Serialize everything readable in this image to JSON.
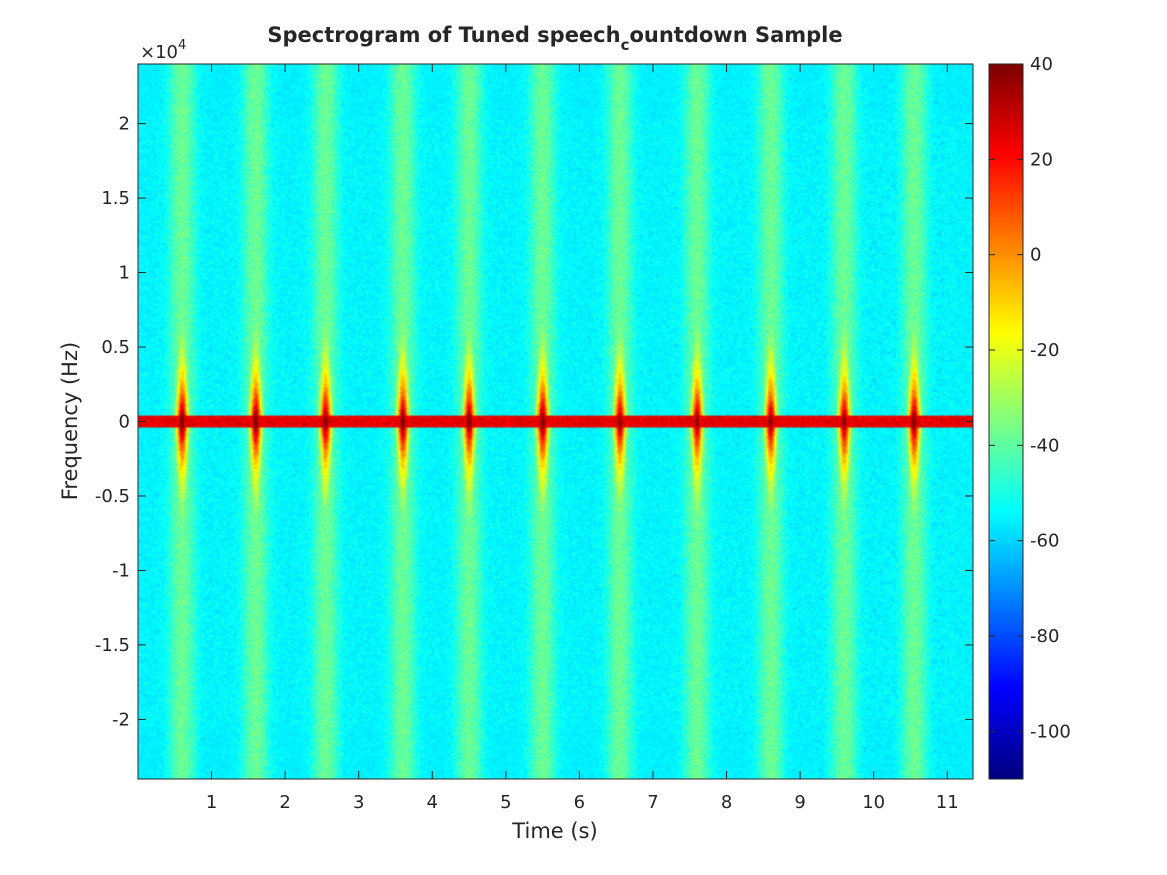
{
  "chart_data": {
    "type": "heatmap",
    "title_main": "Spectrogram of Tuned speech",
    "title_sub": "c",
    "title_rest": "ountdown Sample",
    "xlabel": "Time (s)",
    "ylabel": "Frequency (Hz)",
    "y_exponent_base": "×10",
    "y_exponent_power": "4",
    "xlim": [
      0,
      11.35
    ],
    "ylim": [
      -2.4,
      2.4
    ],
    "y_scale_factor": 10000,
    "xticks": [
      1,
      2,
      3,
      4,
      5,
      6,
      7,
      8,
      9,
      10,
      11
    ],
    "xtick_labels": [
      "1",
      "2",
      "3",
      "4",
      "5",
      "6",
      "7",
      "8",
      "9",
      "10",
      "11"
    ],
    "yticks": [
      2,
      1.5,
      1,
      0.5,
      0,
      -0.5,
      -1,
      -1.5,
      -2
    ],
    "ytick_labels": [
      "2",
      "1.5",
      "1",
      "0.5",
      "0",
      "-0.5",
      "-1",
      "-1.5",
      "-2"
    ],
    "colorbar": {
      "clim": [
        -110,
        40
      ],
      "ticks": [
        40,
        20,
        0,
        -20,
        -40,
        -60,
        -80,
        -100
      ],
      "tick_labels": [
        "40",
        "20",
        "0",
        "-20",
        "-40",
        "-60",
        "-80",
        "-100"
      ],
      "colormap": "jet"
    },
    "background_level_db": -58,
    "center_band_level_db": 25,
    "utterances": [
      {
        "t": 0.6,
        "peak_db": 35
      },
      {
        "t": 1.6,
        "peak_db": 35
      },
      {
        "t": 2.55,
        "peak_db": 33
      },
      {
        "t": 3.6,
        "peak_db": 35
      },
      {
        "t": 4.5,
        "peak_db": 33
      },
      {
        "t": 5.5,
        "peak_db": 35
      },
      {
        "t": 6.55,
        "peak_db": 30
      },
      {
        "t": 7.6,
        "peak_db": 30
      },
      {
        "t": 8.6,
        "peak_db": 30
      },
      {
        "t": 9.6,
        "peak_db": 30
      },
      {
        "t": 10.55,
        "peak_db": 33
      }
    ],
    "grid": false,
    "colors": {
      "axis": "#262626",
      "background": "#ffffff"
    }
  }
}
